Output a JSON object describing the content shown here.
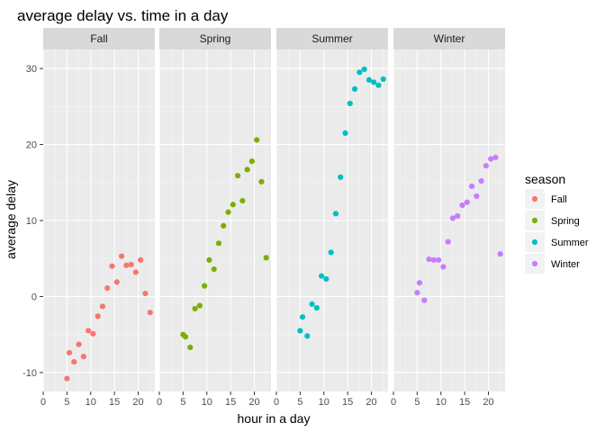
{
  "chart_data": {
    "type": "scatter",
    "title": "average delay vs. time in a day",
    "xlabel": "hour in a day",
    "ylabel": "average delay",
    "xlim": [
      0,
      23.5
    ],
    "ylim": [
      -12.5,
      32.5
    ],
    "x_ticks": [
      0,
      5,
      10,
      15,
      20
    ],
    "y_ticks": [
      -10,
      0,
      10,
      20,
      30
    ],
    "facet_by": "season",
    "grid": true,
    "legend": {
      "title": "season",
      "position": "right"
    },
    "series": [
      {
        "name": "Fall",
        "color": "#F8766D",
        "x": [
          5,
          5.5,
          6.5,
          7.5,
          8.5,
          9.5,
          10.5,
          11.5,
          12.5,
          13.5,
          14.5,
          15.5,
          16.5,
          17.5,
          18.5,
          19.5,
          20.5,
          21.5,
          22.5
        ],
        "y": [
          -10.8,
          -7.4,
          -8.6,
          -6.3,
          -7.9,
          -4.5,
          -4.9,
          -2.6,
          -1.3,
          1.1,
          4.0,
          1.9,
          5.3,
          4.1,
          4.2,
          3.2,
          4.8,
          0.4,
          -2.1
        ]
      },
      {
        "name": "Spring",
        "color": "#7CAE00",
        "x": [
          5,
          5.5,
          6.5,
          7.5,
          8.5,
          9.5,
          10.5,
          11.5,
          12.5,
          13.5,
          14.5,
          15.5,
          16.5,
          17.5,
          18.5,
          19.5,
          20.5,
          21.5,
          22.5
        ],
        "y": [
          -5.0,
          -5.3,
          -6.7,
          -1.6,
          -1.2,
          1.4,
          4.8,
          3.6,
          7.0,
          9.3,
          11.1,
          12.1,
          15.9,
          12.6,
          16.7,
          17.8,
          20.6,
          15.1,
          5.1
        ]
      },
      {
        "name": "Summer",
        "color": "#00BFC4",
        "x": [
          5,
          5.5,
          6.5,
          7.5,
          8.5,
          9.5,
          10.5,
          11.5,
          12.5,
          13.5,
          14.5,
          15.5,
          16.5,
          17.5,
          18.5,
          19.5,
          20.5,
          21.5,
          22.5
        ],
        "y": [
          -4.5,
          -2.7,
          -5.2,
          -1.0,
          -1.5,
          2.7,
          2.3,
          5.8,
          10.9,
          15.7,
          21.5,
          25.4,
          27.3,
          29.5,
          29.9,
          28.5,
          28.2,
          27.8,
          28.6
        ]
      },
      {
        "name": "Winter",
        "color": "#C77CFF",
        "x": [
          5,
          5.5,
          6.5,
          7.5,
          8.5,
          9.5,
          10.5,
          11.5,
          12.5,
          13.5,
          14.5,
          15.5,
          16.5,
          17.5,
          18.5,
          19.5,
          20.5,
          21.5,
          22.5
        ],
        "y": [
          0.5,
          1.8,
          -0.5,
          4.9,
          4.8,
          4.8,
          3.9,
          7.2,
          10.3,
          10.6,
          12.0,
          12.4,
          14.5,
          13.2,
          15.2,
          17.2,
          18.1,
          18.3,
          5.6
        ]
      }
    ]
  }
}
